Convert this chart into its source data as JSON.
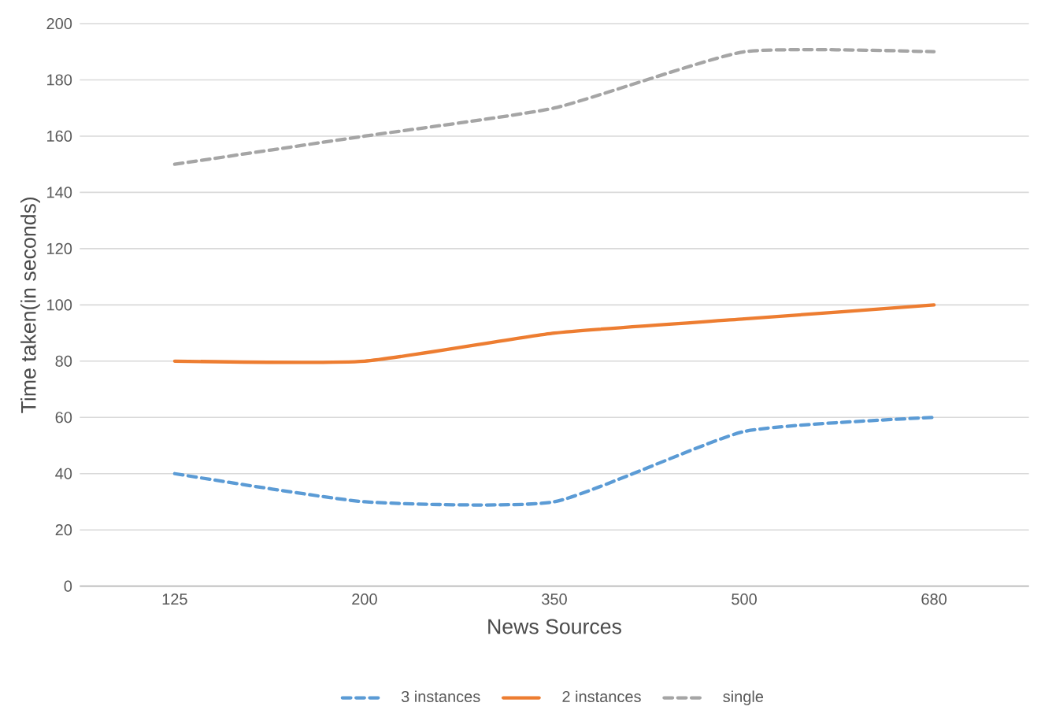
{
  "chart_data": {
    "type": "line",
    "xlabel": "News Sources",
    "ylabel": "Time taken(in seconds)",
    "categories": [
      "125",
      "200",
      "350",
      "500",
      "680"
    ],
    "series": [
      {
        "name": "3 instances",
        "color": "#5b9bd5",
        "line_style": "dashed",
        "values": [
          40,
          30,
          30,
          55,
          60
        ]
      },
      {
        "name": "2 instances",
        "color": "#ed7d31",
        "line_style": "solid",
        "values": [
          80,
          80,
          90,
          95,
          100
        ]
      },
      {
        "name": "single",
        "color": "#a5a5a5",
        "line_style": "dashed",
        "values": [
          150,
          160,
          170,
          190,
          190
        ]
      }
    ],
    "ylim": [
      0,
      200
    ],
    "yticks": [
      0,
      20,
      40,
      60,
      80,
      100,
      120,
      140,
      160,
      180,
      200
    ],
    "grid": "y",
    "legend": "bottom",
    "marker": "none"
  }
}
